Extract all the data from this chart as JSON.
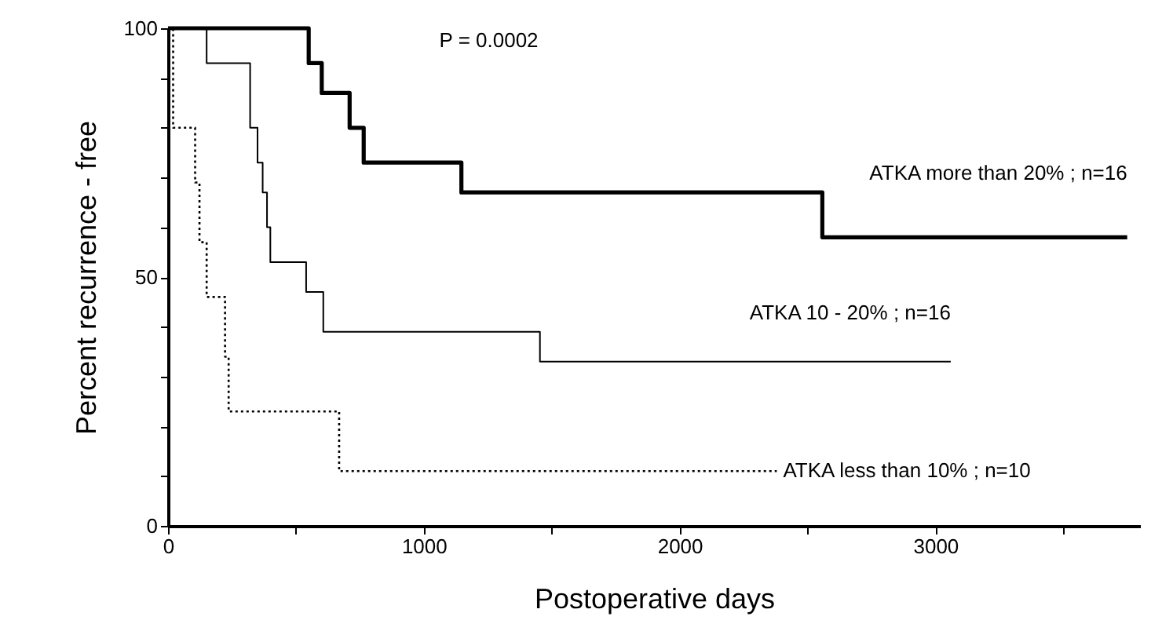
{
  "chart_data": {
    "type": "step",
    "xlabel": "Postoperative days",
    "ylabel": "Percent recurrence - free",
    "annotations": [
      "P = 0.0002"
    ],
    "xlim": [
      0,
      3800
    ],
    "ylim": [
      0,
      100
    ],
    "xticks": [
      0,
      {
        "value": 500,
        "label": null
      },
      1000,
      {
        "value": 1500,
        "label": null
      },
      2000,
      {
        "value": 2500,
        "label": null
      },
      3000,
      {
        "value": 3500,
        "label": null
      }
    ],
    "yticks": [
      0,
      {
        "value": 10,
        "label": null
      },
      {
        "value": 20,
        "label": null
      },
      {
        "value": 30,
        "label": null
      },
      {
        "value": 40,
        "label": null
      },
      50,
      {
        "value": 60,
        "label": null
      },
      {
        "value": 70,
        "label": null
      },
      {
        "value": 80,
        "label": null
      },
      {
        "value": 90,
        "label": null
      },
      100
    ],
    "grid": false,
    "series": [
      {
        "name": "ATKA more than 20% ; n=16",
        "color": "#000000",
        "line_style": "solid",
        "x": [
          0,
          550,
          601,
          710,
          765,
          1147,
          2558,
          3750
        ],
        "values": [
          100,
          93,
          87,
          80,
          73,
          67,
          58,
          58
        ]
      },
      {
        "name": "ATKA 10 - 20% ; n=16",
        "color": "#000000",
        "line_style": "solid",
        "x": [
          0,
          151,
          321,
          350,
          370,
          387,
          400,
          540,
          607,
          1454,
          3060
        ],
        "values": [
          100,
          93,
          80,
          73,
          67,
          60,
          53,
          47,
          39,
          33,
          33
        ]
      },
      {
        "name": "ATKA less than 10% ; n=10",
        "color": "#000000",
        "line_style": "dotted",
        "x": [
          0,
          20,
          106,
          123,
          151,
          223,
          237,
          669,
          2380
        ],
        "values": [
          100,
          80,
          69,
          57,
          46,
          34,
          23,
          11,
          11
        ]
      }
    ]
  }
}
